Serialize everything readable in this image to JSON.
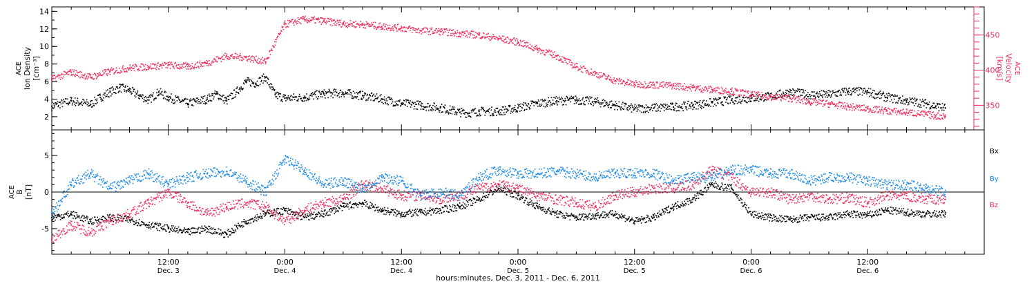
{
  "colors": {
    "black": "#000000",
    "red": "#ee2d5b",
    "blue": "#1a8ae8"
  },
  "footer": {
    "title": "hours:minutes, Dec.  3, 2011 - Dec.  6, 2011"
  },
  "chart_data": [
    {
      "type": "scatter",
      "ylabel": [
        "ACE",
        "Ion Density",
        "[cm⁻³]"
      ],
      "ylim": [
        0.5,
        14.5
      ],
      "yticks": [
        2,
        4,
        6,
        8,
        10,
        12,
        14
      ],
      "y2label": [
        "ACE",
        "Velocity",
        "[km/s]"
      ],
      "y2lim": [
        315,
        490
      ],
      "y2ticks": [
        350,
        400,
        450
      ],
      "xlim": [
        0,
        96
      ],
      "x_unit": "hours since 00:00 Dec. 3, 2011",
      "series": [
        {
          "name": "Density",
          "axis": "y",
          "color": "#000000",
          "x": [
            0,
            2,
            4,
            5,
            6,
            7,
            8,
            9,
            10,
            11,
            12,
            14,
            16,
            17,
            18,
            19,
            20,
            21,
            22,
            23,
            24,
            26,
            28,
            30,
            32,
            34,
            36,
            38,
            40,
            42,
            43,
            44,
            46,
            48,
            50,
            52,
            54,
            56,
            58,
            60,
            62,
            64,
            66,
            68,
            70,
            72,
            74,
            76,
            78,
            80,
            82,
            84,
            86,
            88,
            90,
            91,
            92
          ],
          "y": [
            3.2,
            3.8,
            3.4,
            4.2,
            4.8,
            5.3,
            5.0,
            4.4,
            3.9,
            4.8,
            4.2,
            3.5,
            4.0,
            4.6,
            3.8,
            4.8,
            6.0,
            5.8,
            6.5,
            4.5,
            4.1,
            4.2,
            4.6,
            4.7,
            4.4,
            4.0,
            3.5,
            3.3,
            3.0,
            2.5,
            2.4,
            2.6,
            2.6,
            3.0,
            3.5,
            3.8,
            3.9,
            3.7,
            3.3,
            2.9,
            3.0,
            3.1,
            3.3,
            3.6,
            3.9,
            4.1,
            4.3,
            4.8,
            4.5,
            4.5,
            4.9,
            4.8,
            4.2,
            3.8,
            3.5,
            3.2,
            3.0
          ]
        },
        {
          "name": "Velocity",
          "axis": "y2",
          "color": "#ee2d5b",
          "x": [
            0,
            2,
            4,
            6,
            8,
            10,
            12,
            14,
            16,
            18,
            20,
            22,
            24,
            26,
            28,
            30,
            32,
            34,
            36,
            38,
            40,
            42,
            44,
            46,
            48,
            50,
            52,
            54,
            56,
            58,
            60,
            62,
            64,
            66,
            68,
            70,
            72,
            74,
            76,
            78,
            80,
            82,
            84,
            86,
            88,
            90,
            91,
            92
          ],
          "y": [
            387,
            397,
            390,
            398,
            403,
            405,
            407,
            405,
            410,
            420,
            418,
            412,
            465,
            472,
            470,
            466,
            465,
            462,
            460,
            456,
            455,
            452,
            450,
            445,
            440,
            430,
            420,
            405,
            395,
            385,
            380,
            379,
            378,
            375,
            372,
            370,
            365,
            362,
            360,
            355,
            352,
            348,
            345,
            342,
            340,
            337,
            335,
            334
          ]
        }
      ]
    },
    {
      "type": "scatter",
      "ylabel": [
        "ACE",
        "B",
        "[nT]"
      ],
      "ylim": [
        -8.5,
        8.5
      ],
      "yticks": [
        -5,
        0,
        5
      ],
      "xlim": [
        0,
        96
      ],
      "x_unit": "hours since 00:00 Dec. 3, 2011",
      "legend": [
        "Bx",
        "By",
        "Bz"
      ],
      "series": [
        {
          "name": "Bx",
          "color": "#000000",
          "x": [
            0,
            2,
            4,
            6,
            8,
            10,
            12,
            14,
            16,
            18,
            20,
            22,
            24,
            26,
            28,
            30,
            32,
            34,
            36,
            38,
            40,
            42,
            44,
            46,
            48,
            50,
            52,
            54,
            56,
            58,
            60,
            62,
            64,
            66,
            68,
            70,
            72,
            74,
            76,
            78,
            80,
            82,
            84,
            86,
            88,
            90,
            92
          ],
          "y": [
            -3.5,
            -3.0,
            -4.0,
            -3.5,
            -3.8,
            -4.5,
            -5.0,
            -5.5,
            -5.0,
            -5.8,
            -4.0,
            -3.0,
            -2.5,
            -3.5,
            -3.0,
            -2.0,
            -1.5,
            -2.5,
            -3.0,
            -2.8,
            -2.5,
            -2.0,
            -1.0,
            0.5,
            -0.5,
            -2.0,
            -3.0,
            -3.5,
            -3.2,
            -3.0,
            -4.0,
            -3.5,
            -2.0,
            -1.0,
            1.0,
            0.5,
            -3.0,
            -3.5,
            -3.8,
            -3.5,
            -3.5,
            -3.0,
            -3.2,
            -2.5,
            -2.8,
            -3.0,
            -3.0
          ]
        },
        {
          "name": "By",
          "color": "#1a8ae8",
          "x": [
            0,
            2,
            4,
            6,
            8,
            10,
            12,
            14,
            16,
            18,
            20,
            22,
            24,
            26,
            28,
            30,
            32,
            34,
            36,
            38,
            40,
            42,
            44,
            46,
            48,
            50,
            52,
            54,
            56,
            58,
            60,
            62,
            64,
            66,
            68,
            70,
            72,
            74,
            76,
            78,
            80,
            82,
            84,
            86,
            88,
            90,
            92
          ],
          "y": [
            -3.0,
            1.0,
            2.5,
            0.5,
            1.5,
            2.5,
            1.0,
            2.0,
            2.5,
            2.8,
            1.5,
            0.0,
            4.5,
            3.0,
            1.0,
            1.5,
            0.5,
            2.0,
            1.5,
            -0.5,
            0.0,
            -0.5,
            2.0,
            3.0,
            2.5,
            2.5,
            2.8,
            2.5,
            2.0,
            2.5,
            2.6,
            2.5,
            1.5,
            2.0,
            2.0,
            3.0,
            3.0,
            2.5,
            2.5,
            1.5,
            2.0,
            2.0,
            1.5,
            1.0,
            1.0,
            0.5,
            0.0
          ]
        },
        {
          "name": "Bz",
          "color": "#ee2d5b",
          "x": [
            0,
            2,
            4,
            6,
            8,
            10,
            12,
            14,
            16,
            18,
            20,
            22,
            24,
            26,
            28,
            30,
            32,
            34,
            36,
            38,
            40,
            42,
            44,
            46,
            48,
            50,
            52,
            54,
            56,
            58,
            60,
            62,
            64,
            66,
            68,
            70,
            72,
            74,
            76,
            78,
            80,
            82,
            84,
            86,
            88,
            90,
            92
          ],
          "y": [
            -6.5,
            -4.5,
            -5.5,
            -4.0,
            -3.0,
            -1.5,
            0.0,
            -1.5,
            -3.0,
            -2.0,
            -1.5,
            -2.0,
            -4.0,
            -2.5,
            -1.5,
            -1.0,
            1.0,
            0.5,
            -0.5,
            -0.5,
            -1.0,
            -0.5,
            0.5,
            1.0,
            0.5,
            -0.5,
            -1.0,
            -1.5,
            -2.0,
            -0.5,
            0.0,
            0.5,
            0.5,
            1.0,
            3.0,
            2.0,
            0.0,
            0.0,
            -1.0,
            -0.5,
            -1.0,
            -0.8,
            -1.5,
            -0.5,
            -0.5,
            -1.0,
            -1.0
          ]
        }
      ]
    }
  ],
  "xaxis": {
    "ticks": [
      {
        "time": "12:00",
        "day": "Dec. 3"
      },
      {
        "time": "0:00",
        "day": "Dec. 4"
      },
      {
        "time": "12:00",
        "day": "Dec. 4"
      },
      {
        "time": "0:00",
        "day": "Dec. 5"
      },
      {
        "time": "12:00",
        "day": "Dec. 5"
      },
      {
        "time": "0:00",
        "day": "Dec. 6"
      },
      {
        "time": "12:00",
        "day": "Dec. 6"
      }
    ],
    "tick_hours": [
      12,
      24,
      36,
      48,
      60,
      72,
      84
    ]
  }
}
